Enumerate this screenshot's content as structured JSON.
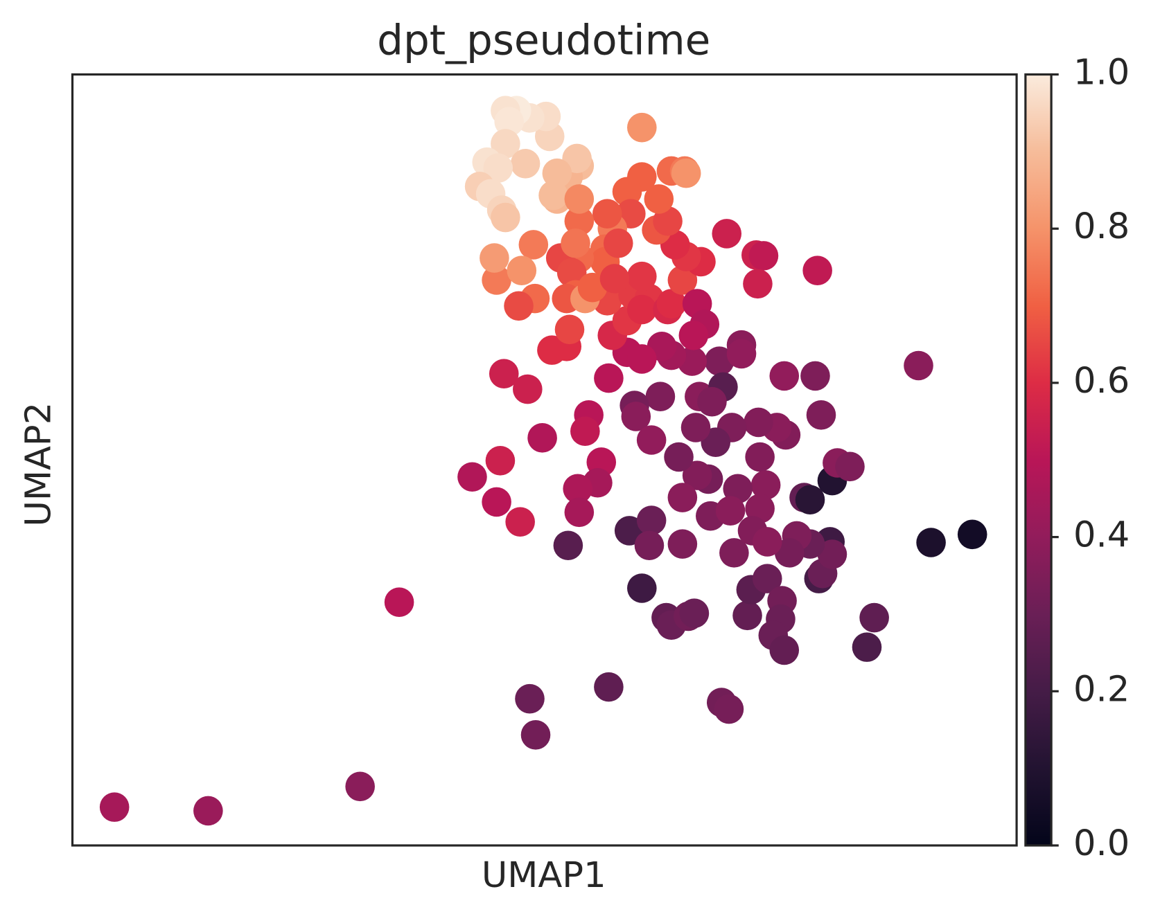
{
  "chart_data": {
    "type": "scatter",
    "title": "dpt_pseudotime",
    "xlabel": "UMAP1",
    "ylabel": "UMAP2",
    "xlim": [
      0,
      1280
    ],
    "ylim": [
      0,
      1046
    ],
    "x": [
      57,
      184,
      390,
      443,
      620,
      628,
      727,
      880,
      890,
      672,
      772,
      755,
      785,
      782,
      827,
      805,
      812,
      835,
      843,
      915,
      920,
      942,
      962,
      960,
      950,
      965,
      1012,
      1017,
      1027,
      1030,
      1000,
      982,
      972,
      992,
      1000,
      1030,
      1037,
      1054,
      1087,
      1077,
      1164,
      1220,
      1147,
      1007,
      1015,
      965,
      967,
      955,
      930,
      932,
      940,
      932,
      902,
      897,
      922,
      942,
      894,
      872,
      862,
      847,
      865,
      892,
      827,
      822,
      845,
      850,
      877,
      882,
      867,
      907,
      907,
      840,
      812,
      799,
      752,
      772,
      797,
      762,
      764,
      785,
      727,
      700,
      695,
      717,
      712,
      685,
      687,
      637,
      580,
      542,
      575,
      607,
      585,
      617,
      650,
      670,
      674,
      732,
      752,
      725,
      760,
      782,
      772,
      807,
      812,
      827,
      847,
      857,
      842,
      887,
      927,
      937,
      929,
      1010,
      852,
      832,
      817,
      792,
      807,
      795,
      772,
      812,
      830,
      832,
      772,
      752,
      757,
      732,
      725,
      722,
      722,
      687,
      662,
      677,
      682,
      670,
      695,
      705,
      740,
      772,
      735,
      625,
      627,
      605,
      575,
      572,
      609,
      687,
      682,
      687,
      672,
      657,
      652,
      687,
      684,
      657,
      647,
      642,
      620,
      602,
      587,
      592,
      587,
      614,
      562,
      577,
      552,
      567,
      582,
      587
    ],
    "y": [
      52,
      47,
      80,
      330,
      199,
      150,
      215,
      194,
      185,
      407,
      349,
      427,
      441,
      407,
      409,
      309,
      299,
      311,
      315,
      312,
      347,
      362,
      332,
      307,
      285,
      265,
      362,
      369,
      412,
      395,
      409,
      420,
      397,
      472,
      469,
      495,
      519,
      514,
      309,
      269,
      411,
      422,
      651,
      637,
      584,
      637,
      557,
      567,
      574,
      527,
      489,
      457,
      484,
      397,
      427,
      412,
      567,
      547,
      497,
      502,
      447,
      454,
      472,
      527,
      567,
      609,
      657,
      622,
      602,
      679,
      667,
      657,
      665,
      677,
      669,
      660,
      609,
      597,
      582,
      550,
      634,
      584,
      562,
      520,
      492,
      484,
      452,
      553,
      522,
      500,
      466,
      439,
      640,
      619,
      672,
      677,
      700,
      692,
      712,
      739,
      747,
      742,
      727,
      727,
      735,
      767,
      735,
      707,
      692,
      830,
      801,
      800,
      762,
      780,
      792,
      799,
      815,
      835,
      847,
      877,
      907,
      915,
      915,
      912,
      974,
      887,
      857,
      837,
      857,
      809,
      792,
      797,
      797,
      777,
      747,
      742,
      742,
      757,
      817,
      772,
      769,
      815,
      742,
      732,
      767,
      797,
      780,
      847,
      817,
      922,
      907,
      877,
      882,
      877,
      932,
      912,
      962,
      989,
      987,
      997,
      997,
      982,
      952,
      925,
      927,
      919,
      894,
      884,
      862,
      852
    ],
    "color_values": [
      0.45,
      0.42,
      0.38,
      0.5,
      0.3,
      0.32,
      0.27,
      0.32,
      0.33,
      0.25,
      0.18,
      0.22,
      0.3,
      0.33,
      0.35,
      0.28,
      0.3,
      0.32,
      0.3,
      0.28,
      0.26,
      0.3,
      0.32,
      0.3,
      0.3,
      0.28,
      0.2,
      0.3,
      0.18,
      0.32,
      0.3,
      0.35,
      0.33,
      0.28,
      0.12,
      0.1,
      0.38,
      0.35,
      0.27,
      0.22,
      0.08,
      0.05,
      0.38,
      0.35,
      0.35,
      0.4,
      0.36,
      0.38,
      0.36,
      0.36,
      0.38,
      0.38,
      0.35,
      0.35,
      0.36,
      0.38,
      0.35,
      0.3,
      0.33,
      0.36,
      0.35,
      0.38,
      0.38,
      0.33,
      0.35,
      0.38,
      0.35,
      0.25,
      0.35,
      0.38,
      0.4,
      0.42,
      0.44,
      0.46,
      0.5,
      0.5,
      0.35,
      0.33,
      0.38,
      0.4,
      0.5,
      0.5,
      0.52,
      0.5,
      0.45,
      0.47,
      0.45,
      0.48,
      0.55,
      0.48,
      0.5,
      0.55,
      0.55,
      0.55,
      0.6,
      0.6,
      0.65,
      0.58,
      0.62,
      0.65,
      0.63,
      0.62,
      0.6,
      0.58,
      0.6,
      0.65,
      0.5,
      0.48,
      0.5,
      0.55,
      0.55,
      0.52,
      0.55,
      0.52,
      0.6,
      0.62,
      0.6,
      0.68,
      0.65,
      0.7,
      0.7,
      0.72,
      0.75,
      0.8,
      0.8,
      0.7,
      0.66,
      0.75,
      0.68,
      0.72,
      0.7,
      0.72,
      0.65,
      0.66,
      0.7,
      0.68,
      0.8,
      0.7,
      0.65,
      0.62,
      0.63,
      0.75,
      0.72,
      0.66,
      0.75,
      0.82,
      0.8,
      0.72,
      0.74,
      0.9,
      0.88,
      0.88,
      0.9,
      0.78,
      0.92,
      0.9,
      0.95,
      0.97,
      0.98,
      1.0,
      0.98,
      0.99,
      0.96,
      0.93,
      0.98,
      0.97,
      0.94,
      0.97,
      0.95,
      0.92
    ],
    "colormap": "rocket",
    "clim": [
      0,
      1
    ],
    "cticks": [
      {
        "value": 0,
        "label": "0.0"
      },
      {
        "value": 0.2,
        "label": "0.2"
      },
      {
        "value": 0.4,
        "label": "0.4"
      },
      {
        "value": 0.6,
        "label": "0.6"
      },
      {
        "value": 0.8,
        "label": "0.8"
      },
      {
        "value": 1,
        "label": "1.0"
      }
    ]
  }
}
